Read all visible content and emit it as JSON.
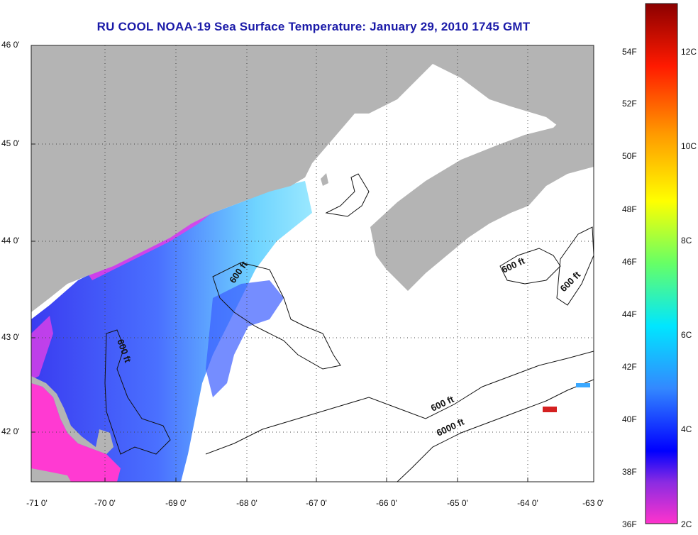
{
  "title": "RU COOL  NOAA-19  Sea Surface Temperature:  January 29, 2010 1745 GMT",
  "map": {
    "lat_ticks": [
      "46 0'",
      "45 0'",
      "44 0'",
      "43 0'",
      "42 0'"
    ],
    "lon_ticks": [
      "-71 0'",
      "-70 0'",
      "-69 0'",
      "-68 0'",
      "-67 0'",
      "-66 0'",
      "-65 0'",
      "-64 0'",
      "-63 0'"
    ],
    "contour_labels": [
      "600 ft",
      "600 ft",
      "600 ft",
      "600 ft",
      "600 ft",
      "6000 ft"
    ],
    "colors": {
      "land": "#b4b4b4",
      "ocean_no_data": "#ffffff",
      "sst_cold": "#ff2bd0",
      "sst_blue": "#2a4cff",
      "sst_cyan": "#6fe0ff"
    }
  },
  "colorbar": {
    "f_labels": [
      "54F",
      "52F",
      "50F",
      "48F",
      "46F",
      "44F",
      "42F",
      "40F",
      "38F",
      "36F"
    ],
    "c_labels": [
      "12C",
      "10C",
      "8C",
      "6C",
      "4C",
      "2C"
    ]
  }
}
